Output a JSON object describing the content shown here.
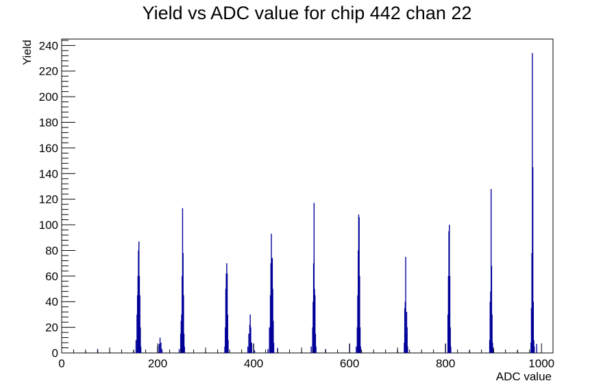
{
  "chart_data": {
    "type": "histogram",
    "title": "Yield vs ADC value for chip 442 chan 22",
    "xlabel": "ADC value",
    "ylabel": "Yield",
    "xlim": [
      0,
      1024
    ],
    "ylim": [
      0,
      245
    ],
    "x_ticks": [
      0,
      200,
      400,
      600,
      800,
      1000
    ],
    "y_ticks": [
      0,
      20,
      40,
      60,
      80,
      100,
      120,
      140,
      160,
      180,
      200,
      220,
      240
    ],
    "line_color": "#000099",
    "grid": false,
    "legend": "none",
    "bins": [
      {
        "x": 50,
        "y": 1
      },
      {
        "x": 75,
        "y": 3
      },
      {
        "x": 100,
        "y": 1
      },
      {
        "x": 150,
        "y": 2
      },
      {
        "x": 155,
        "y": 10
      },
      {
        "x": 157,
        "y": 30
      },
      {
        "x": 158,
        "y": 45
      },
      {
        "x": 159,
        "y": 60
      },
      {
        "x": 160,
        "y": 80
      },
      {
        "x": 161,
        "y": 87
      },
      {
        "x": 162,
        "y": 60
      },
      {
        "x": 163,
        "y": 45
      },
      {
        "x": 164,
        "y": 20
      },
      {
        "x": 165,
        "y": 5
      },
      {
        "x": 200,
        "y": 5
      },
      {
        "x": 203,
        "y": 7
      },
      {
        "x": 205,
        "y": 12
      },
      {
        "x": 207,
        "y": 8
      },
      {
        "x": 209,
        "y": 3
      },
      {
        "x": 245,
        "y": 3
      },
      {
        "x": 248,
        "y": 15
      },
      {
        "x": 249,
        "y": 25
      },
      {
        "x": 250,
        "y": 30
      },
      {
        "x": 251,
        "y": 60
      },
      {
        "x": 252,
        "y": 113
      },
      {
        "x": 253,
        "y": 78
      },
      {
        "x": 254,
        "y": 45
      },
      {
        "x": 255,
        "y": 15
      },
      {
        "x": 256,
        "y": 5
      },
      {
        "x": 300,
        "y": 1
      },
      {
        "x": 340,
        "y": 5
      },
      {
        "x": 341,
        "y": 20
      },
      {
        "x": 342,
        "y": 50
      },
      {
        "x": 343,
        "y": 62
      },
      {
        "x": 344,
        "y": 70
      },
      {
        "x": 345,
        "y": 62
      },
      {
        "x": 346,
        "y": 30
      },
      {
        "x": 347,
        "y": 10
      },
      {
        "x": 388,
        "y": 5
      },
      {
        "x": 390,
        "y": 15
      },
      {
        "x": 392,
        "y": 22
      },
      {
        "x": 393,
        "y": 30
      },
      {
        "x": 394,
        "y": 20
      },
      {
        "x": 396,
        "y": 8
      },
      {
        "x": 400,
        "y": 7
      },
      {
        "x": 402,
        "y": 2
      },
      {
        "x": 430,
        "y": 3
      },
      {
        "x": 433,
        "y": 20
      },
      {
        "x": 435,
        "y": 45
      },
      {
        "x": 436,
        "y": 70
      },
      {
        "x": 437,
        "y": 93
      },
      {
        "x": 438,
        "y": 74
      },
      {
        "x": 439,
        "y": 74
      },
      {
        "x": 440,
        "y": 50
      },
      {
        "x": 441,
        "y": 25
      },
      {
        "x": 442,
        "y": 8
      },
      {
        "x": 450,
        "y": 4
      },
      {
        "x": 500,
        "y": 1
      },
      {
        "x": 520,
        "y": 5
      },
      {
        "x": 523,
        "y": 20
      },
      {
        "x": 524,
        "y": 40
      },
      {
        "x": 525,
        "y": 70
      },
      {
        "x": 526,
        "y": 117
      },
      {
        "x": 527,
        "y": 50
      },
      {
        "x": 528,
        "y": 45
      },
      {
        "x": 529,
        "y": 15
      },
      {
        "x": 530,
        "y": 5
      },
      {
        "x": 550,
        "y": 3
      },
      {
        "x": 600,
        "y": 7
      },
      {
        "x": 614,
        "y": 5
      },
      {
        "x": 616,
        "y": 20
      },
      {
        "x": 617,
        "y": 45
      },
      {
        "x": 618,
        "y": 80
      },
      {
        "x": 619,
        "y": 108
      },
      {
        "x": 620,
        "y": 106
      },
      {
        "x": 621,
        "y": 60
      },
      {
        "x": 622,
        "y": 20
      },
      {
        "x": 623,
        "y": 5
      },
      {
        "x": 700,
        "y": 2
      },
      {
        "x": 714,
        "y": 8
      },
      {
        "x": 715,
        "y": 35
      },
      {
        "x": 716,
        "y": 40
      },
      {
        "x": 717,
        "y": 75
      },
      {
        "x": 718,
        "y": 15
      },
      {
        "x": 719,
        "y": 32
      },
      {
        "x": 720,
        "y": 20
      },
      {
        "x": 721,
        "y": 5
      },
      {
        "x": 800,
        "y": 7
      },
      {
        "x": 805,
        "y": 30
      },
      {
        "x": 806,
        "y": 60
      },
      {
        "x": 807,
        "y": 95
      },
      {
        "x": 808,
        "y": 100
      },
      {
        "x": 809,
        "y": 60
      },
      {
        "x": 810,
        "y": 20
      },
      {
        "x": 811,
        "y": 5
      },
      {
        "x": 850,
        "y": 2
      },
      {
        "x": 892,
        "y": 10
      },
      {
        "x": 893,
        "y": 40
      },
      {
        "x": 894,
        "y": 48
      },
      {
        "x": 895,
        "y": 128
      },
      {
        "x": 896,
        "y": 68
      },
      {
        "x": 897,
        "y": 30
      },
      {
        "x": 898,
        "y": 8
      },
      {
        "x": 900,
        "y": 3
      },
      {
        "x": 950,
        "y": 2
      },
      {
        "x": 978,
        "y": 8
      },
      {
        "x": 979,
        "y": 35
      },
      {
        "x": 980,
        "y": 78
      },
      {
        "x": 981,
        "y": 234
      },
      {
        "x": 982,
        "y": 145
      },
      {
        "x": 983,
        "y": 40
      },
      {
        "x": 984,
        "y": 10
      },
      {
        "x": 985,
        "y": 5
      },
      {
        "x": 990,
        "y": 7
      }
    ]
  }
}
